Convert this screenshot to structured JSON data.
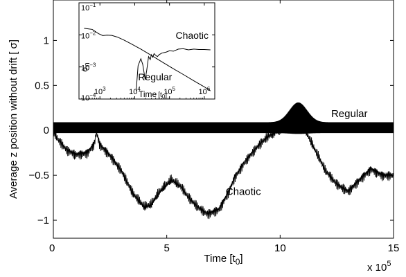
{
  "chart_data": [
    {
      "type": "line",
      "xlabel_base": "Time [t",
      "xlabel_sub": "0",
      "xlabel_close": "]",
      "ylabel": "Average z position without drift [ σ]",
      "x_multiplier_label": "x 10",
      "x_multiplier_exp": "5",
      "xlim": [
        0,
        1500000
      ],
      "ylim": [
        -1.2,
        1.45
      ],
      "xticks": [
        0,
        500000,
        1000000,
        1500000
      ],
      "xtick_labels": [
        "0",
        "5",
        "10",
        "15"
      ],
      "yticks": [
        -1,
        -0.5,
        0,
        0.5,
        1
      ],
      "ytick_labels": [
        "−1",
        "−0.5",
        "0",
        "0.5",
        "1"
      ],
      "grid": false,
      "series": [
        {
          "name": "Regular",
          "color": "#000000",
          "center": 0.03,
          "band_min": -0.03,
          "band_max": 0.09,
          "spike": {
            "x": 1080000,
            "max": 0.31,
            "min": -0.04
          }
        },
        {
          "name": "Chaotic",
          "color": "#000000",
          "x": [
            0,
            20000,
            60000,
            100000,
            150000,
            180000,
            190000,
            205000,
            250000,
            300000,
            350000,
            400000,
            430000,
            470000,
            520000,
            560000,
            600000,
            640000,
            680000,
            730000,
            770000,
            800000,
            850000,
            900000,
            940000,
            980000,
            1000000,
            1030000,
            1060000,
            1080000,
            1100000,
            1120000,
            1160000,
            1200000,
            1250000,
            1300000,
            1350000,
            1400000,
            1450000,
            1500000
          ],
          "y": [
            0.0,
            -0.1,
            -0.22,
            -0.27,
            -0.25,
            -0.15,
            -0.02,
            -0.16,
            -0.28,
            -0.45,
            -0.7,
            -0.85,
            -0.83,
            -0.68,
            -0.55,
            -0.62,
            -0.76,
            -0.86,
            -0.93,
            -0.88,
            -0.7,
            -0.52,
            -0.33,
            -0.18,
            -0.08,
            -0.02,
            0.0,
            0.04,
            0.07,
            0.1,
            0.06,
            -0.05,
            -0.25,
            -0.45,
            -0.6,
            -0.68,
            -0.55,
            -0.43,
            -0.5,
            -0.5
          ],
          "amplitude": 0.065
        }
      ],
      "annotations": [
        {
          "text": "Regular",
          "x": 1225000,
          "y": 0.15
        },
        {
          "text": "Chaotic",
          "x": 760000,
          "y": -0.72
        }
      ]
    },
    {
      "type": "line",
      "inset": true,
      "xscale": "log",
      "yscale": "log",
      "xlabel_base": "Time",
      "xlabel_unit_base": "[t",
      "xlabel_unit_sub": "0",
      "xlabel_unit_close": "]",
      "ylabel_base": "σ",
      "ylabel_sub": "n",
      "xlim": [
        250,
        2000000
      ],
      "ylim": [
        0.0001,
        0.1
      ],
      "xticks": [
        1000,
        10000,
        100000,
        1000000
      ],
      "xtick_labels": [
        {
          "base": "10",
          "exp": "3"
        },
        {
          "base": "10",
          "exp": "4"
        },
        {
          "base": "10",
          "exp": "5"
        },
        {
          "base": "10",
          "exp": "6"
        }
      ],
      "yticks": [
        0.0001,
        0.001,
        0.01,
        0.1
      ],
      "ytick_labels": [
        {
          "base": "10",
          "exp": "−4"
        },
        {
          "base": "10",
          "exp": "−3"
        },
        {
          "base": "10",
          "exp": "−2"
        },
        {
          "base": "10",
          "exp": "−1"
        }
      ],
      "series": [
        {
          "name": "Regular",
          "color": "#000000",
          "x": [
            350,
            600,
            900,
            1200,
            1600,
            2200,
            3200,
            5000,
            8000,
            15000,
            30000,
            60000,
            120000,
            250000,
            500000,
            1000000,
            1500000
          ],
          "y": [
            0.016,
            0.0148,
            0.011,
            0.0095,
            0.0098,
            0.0096,
            0.0085,
            0.0068,
            0.0052,
            0.0036,
            0.0023,
            0.00145,
            0.00092,
            0.00058,
            0.00037,
            0.00024,
            0.00018
          ]
        },
        {
          "name": "Chaotic",
          "color": "#000000",
          "x": [
            11000,
            12500,
            15000,
            17000,
            20000,
            22000,
            25000,
            28000,
            30000,
            33000,
            36000,
            40000,
            45000,
            50000,
            60000,
            80000,
            100000,
            130000,
            180000,
            250000,
            350000,
            500000,
            700000,
            1000000,
            1500000
          ],
          "y": [
            0.00018,
            0.0011,
            0.0018,
            0.0012,
            0.0004,
            0.00075,
            0.0021,
            0.0017,
            0.0024,
            0.002,
            0.0026,
            0.0023,
            0.0021,
            0.0024,
            0.0027,
            0.0029,
            0.0032,
            0.0031,
            0.0036,
            0.0037,
            0.0034,
            0.0036,
            0.0035,
            0.0035,
            0.0034
          ]
        }
      ],
      "annotations": [
        {
          "text": "Chaotic",
          "x": 150000,
          "y": 0.0075
        },
        {
          "text": "Regular",
          "x": 12500,
          "y": 0.00038
        }
      ]
    }
  ]
}
